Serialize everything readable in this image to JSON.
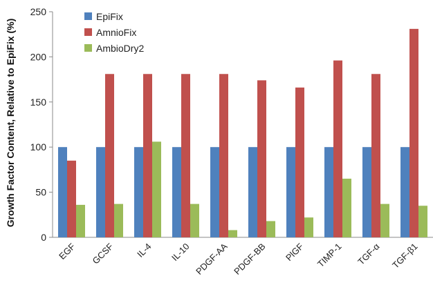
{
  "chart_data": {
    "type": "bar",
    "ylabel": "Growth Factor Content, Relative to EpiFix (%)",
    "ylim": [
      0,
      250
    ],
    "yticks": [
      0,
      50,
      100,
      150,
      200,
      250
    ],
    "grid": false,
    "legend_position": "top-left",
    "categories": [
      "EGF",
      "GCSF",
      "IL-4",
      "IL-10",
      "PDGF-AA",
      "PDGF-BB",
      "PlGF",
      "TIMP-1",
      "TGF-α",
      "TGF-β1"
    ],
    "series": [
      {
        "name": "EpiFix",
        "color": "#4f81bd",
        "values": [
          100,
          100,
          100,
          100,
          100,
          100,
          100,
          100,
          100,
          100
        ]
      },
      {
        "name": "AmnioFix",
        "color": "#c0504d",
        "values": [
          85,
          181,
          181,
          181,
          181,
          174,
          166,
          196,
          181,
          231
        ]
      },
      {
        "name": "AmbioDry2",
        "color": "#9bbb59",
        "values": [
          36,
          37,
          106,
          37,
          8,
          18,
          22,
          65,
          37,
          35
        ]
      }
    ]
  }
}
